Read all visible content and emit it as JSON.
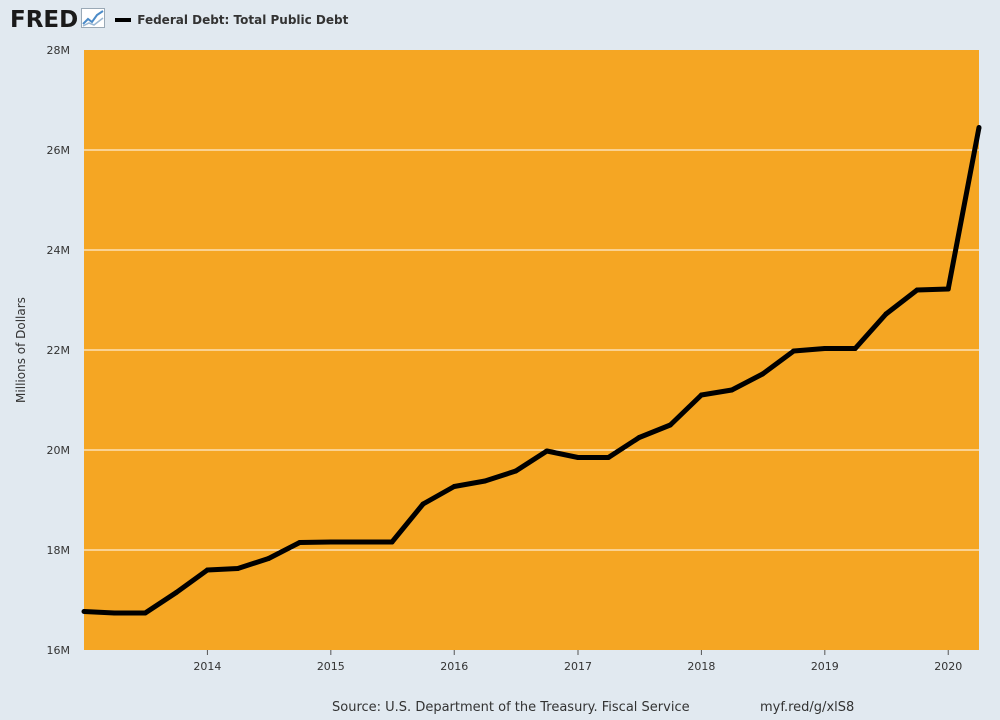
{
  "header": {
    "logo": "FRED",
    "logo_icon": "chart-line-icon"
  },
  "footer": {
    "source": "Source: U.S. Department of the Treasury. Fiscal Service",
    "link": "myf.red/g/xlS8"
  },
  "colors": {
    "background": "#e1e9f0",
    "plot_area": "#f5a623",
    "line": "#000000",
    "grid": "#ffffff"
  },
  "chart_data": {
    "type": "line",
    "ylabel": "Millions of Dollars",
    "ylim": [
      16000000,
      28000000
    ],
    "xlim": [
      "2013-01-01",
      "2020-04-01"
    ],
    "y_ticks": [
      {
        "value": 16000000,
        "label": "16M"
      },
      {
        "value": 18000000,
        "label": "18M"
      },
      {
        "value": 20000000,
        "label": "20M"
      },
      {
        "value": 22000000,
        "label": "22M"
      },
      {
        "value": 24000000,
        "label": "24M"
      },
      {
        "value": 26000000,
        "label": "26M"
      },
      {
        "value": 28000000,
        "label": "28M"
      }
    ],
    "x_ticks": [
      {
        "value": "2014-01-01",
        "label": "2014"
      },
      {
        "value": "2015-01-01",
        "label": "2015"
      },
      {
        "value": "2016-01-01",
        "label": "2016"
      },
      {
        "value": "2017-01-01",
        "label": "2017"
      },
      {
        "value": "2018-01-01",
        "label": "2018"
      },
      {
        "value": "2019-01-01",
        "label": "2019"
      },
      {
        "value": "2020-01-01",
        "label": "2020"
      }
    ],
    "grid": true,
    "series": [
      {
        "name": "Federal Debt: Total Public Debt",
        "x": [
          "2013-01-01",
          "2013-04-01",
          "2013-07-01",
          "2013-10-01",
          "2014-01-01",
          "2014-04-01",
          "2014-07-01",
          "2014-10-01",
          "2015-01-01",
          "2015-04-01",
          "2015-07-01",
          "2015-10-01",
          "2016-01-01",
          "2016-04-01",
          "2016-07-01",
          "2016-10-01",
          "2017-01-01",
          "2017-04-01",
          "2017-07-01",
          "2017-10-01",
          "2018-01-01",
          "2018-04-01",
          "2018-07-01",
          "2018-10-01",
          "2019-01-01",
          "2019-04-01",
          "2019-07-01",
          "2019-10-01",
          "2020-01-01",
          "2020-04-01"
        ],
        "values": [
          16770000,
          16740000,
          16740000,
          17150000,
          17600000,
          17630000,
          17830000,
          18150000,
          18160000,
          18160000,
          18160000,
          18920000,
          19270000,
          19380000,
          19580000,
          19980000,
          19850000,
          19850000,
          20250000,
          20500000,
          21100000,
          21200000,
          21520000,
          21980000,
          22030000,
          22030000,
          22720000,
          23200000,
          23220000,
          26450000
        ]
      }
    ]
  }
}
